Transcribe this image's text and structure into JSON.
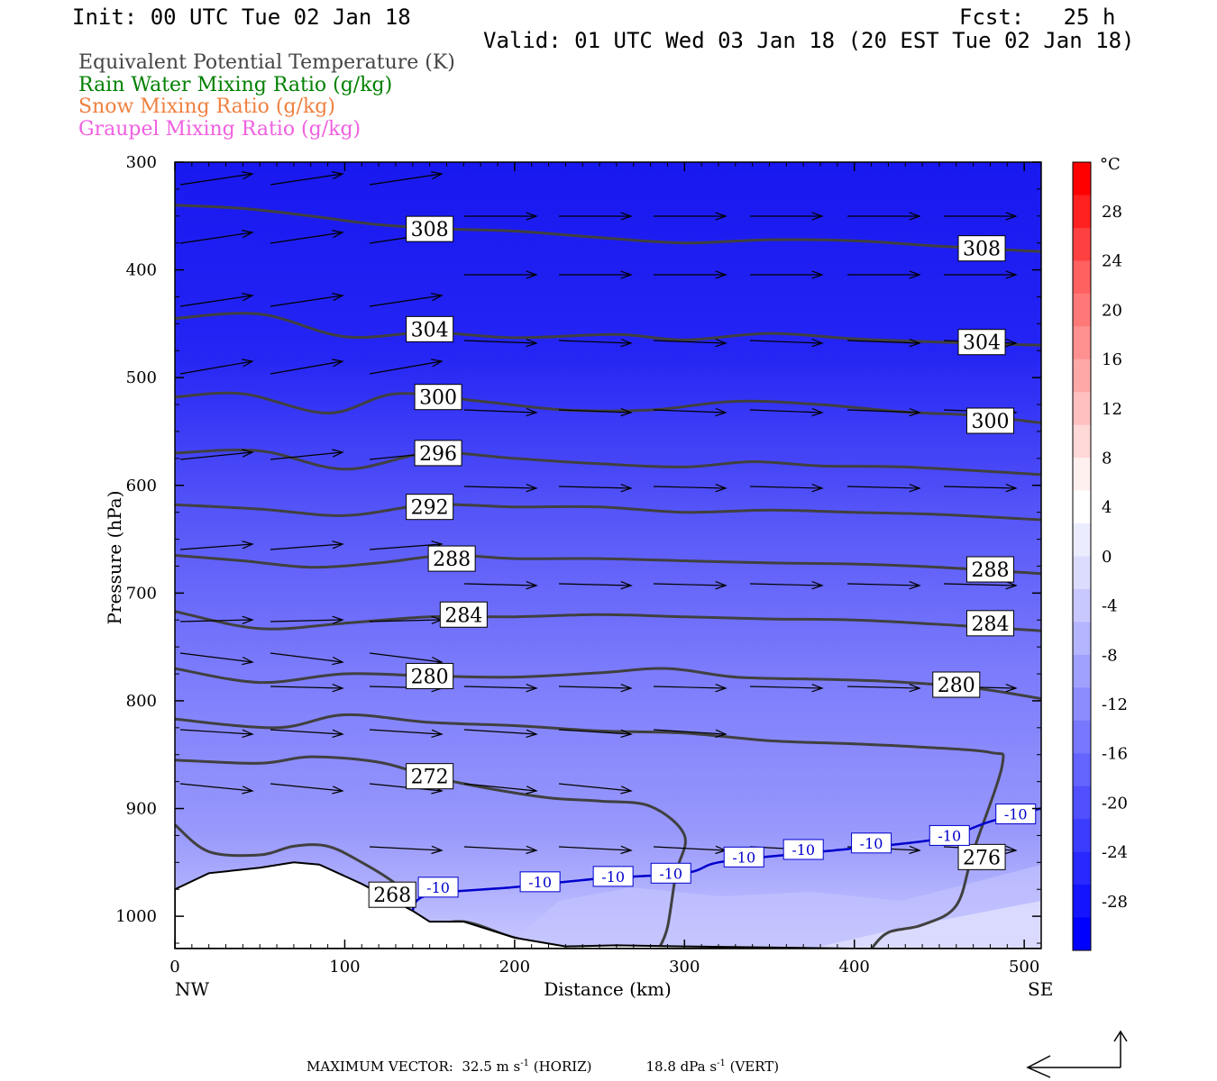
{
  "header": {
    "init": "Init: 00 UTC Tue 02 Jan 18",
    "fcst": "Fcst:   25 h",
    "valid": "Valid: 01 UTC Wed 03 Jan 18 (20 EST Tue 02 Jan 18)"
  },
  "legend": [
    {
      "text": "Equivalent Potential Temperature (K)",
      "color": "#444444"
    },
    {
      "text": "Rain Water Mixing Ratio (g/kg)",
      "color": "#008000"
    },
    {
      "text": "Snow Mixing Ratio (g/kg)",
      "color": "#f08040"
    },
    {
      "text": "Graupel Mixing Ratio (g/kg)",
      "color": "#f060e0"
    }
  ],
  "footer": {
    "text": "MAXIMUM VECTOR:  32.5 m s",
    "horiz": "-1",
    "horiz_tail": " (HORIZ)",
    "vert": "18.8 dPa s",
    "vert_sup": "-1",
    "vert_tail": " (VERT)"
  },
  "chart_data": {
    "type": "cross-section",
    "xlabel": "Distance (km)",
    "ylabel": "Pressure (hPa)",
    "xlim": [
      0,
      510
    ],
    "ylim": [
      1030,
      300
    ],
    "x_ticks": [
      0,
      100,
      200,
      300,
      400,
      500
    ],
    "y_ticks": [
      300,
      400,
      500,
      600,
      700,
      800,
      900,
      1000
    ],
    "x_end_labels": {
      "left": "NW",
      "right": "SE"
    },
    "colorbar": {
      "unit": "°C",
      "labels": [
        28,
        24,
        20,
        16,
        12,
        8,
        4,
        0,
        -4,
        -8,
        -12,
        -16,
        -20,
        -24,
        -28
      ],
      "colors": [
        "#ff0000",
        "#ff2020",
        "#ff4040",
        "#ff6060",
        "#ff7878",
        "#ff9090",
        "#ffa8a8",
        "#ffc0c0",
        "#ffd8d8",
        "#fff0f0",
        "#ffffff",
        "#ececff",
        "#dcdcff",
        "#c8c8ff",
        "#b4b4ff",
        "#a0a0ff",
        "#8c8cff",
        "#7878ff",
        "#6464ff",
        "#5050ff",
        "#3c3cff",
        "#2828ff",
        "#1414ff",
        "#0000ff"
      ]
    },
    "theta_e_contours": [
      {
        "label": "308",
        "points": [
          [
            0,
            340
          ],
          [
            40,
            343
          ],
          [
            80,
            350
          ],
          [
            120,
            358
          ],
          [
            160,
            362
          ],
          [
            200,
            364
          ],
          [
            250,
            370
          ],
          [
            300,
            375
          ],
          [
            350,
            372
          ],
          [
            400,
            373
          ],
          [
            450,
            378
          ],
          [
            510,
            383
          ]
        ]
      },
      {
        "label": "304",
        "points": [
          [
            0,
            445
          ],
          [
            50,
            441
          ],
          [
            100,
            462
          ],
          [
            150,
            458
          ],
          [
            200,
            463
          ],
          [
            260,
            460
          ],
          [
            300,
            465
          ],
          [
            350,
            459
          ],
          [
            400,
            464
          ],
          [
            450,
            467
          ],
          [
            510,
            470
          ]
        ]
      },
      {
        "label": "300",
        "points": [
          [
            0,
            518
          ],
          [
            40,
            515
          ],
          [
            90,
            533
          ],
          [
            130,
            515
          ],
          [
            180,
            522
          ],
          [
            230,
            530
          ],
          [
            280,
            530
          ],
          [
            330,
            522
          ],
          [
            380,
            525
          ],
          [
            430,
            532
          ],
          [
            470,
            535
          ],
          [
            510,
            542
          ]
        ]
      },
      {
        "label": "296",
        "points": [
          [
            0,
            570
          ],
          [
            50,
            568
          ],
          [
            100,
            585
          ],
          [
            150,
            570
          ],
          [
            200,
            575
          ],
          [
            250,
            580
          ],
          [
            300,
            583
          ],
          [
            340,
            578
          ],
          [
            380,
            582
          ],
          [
            430,
            583
          ],
          [
            510,
            590
          ]
        ]
      },
      {
        "label": "292",
        "points": [
          [
            0,
            618
          ],
          [
            50,
            622
          ],
          [
            100,
            628
          ],
          [
            150,
            618
          ],
          [
            200,
            620
          ],
          [
            250,
            620
          ],
          [
            300,
            625
          ],
          [
            350,
            623
          ],
          [
            400,
            625
          ],
          [
            450,
            627
          ],
          [
            510,
            632
          ]
        ]
      },
      {
        "label": "288",
        "points": [
          [
            0,
            665
          ],
          [
            40,
            670
          ],
          [
            80,
            676
          ],
          [
            120,
            672
          ],
          [
            160,
            665
          ],
          [
            200,
            668
          ],
          [
            250,
            668
          ],
          [
            300,
            670
          ],
          [
            350,
            672
          ],
          [
            400,
            673
          ],
          [
            450,
            676
          ],
          [
            510,
            682
          ]
        ]
      },
      {
        "label": "284",
        "points": [
          [
            0,
            717
          ],
          [
            50,
            733
          ],
          [
            100,
            728
          ],
          [
            150,
            722
          ],
          [
            200,
            722
          ],
          [
            250,
            720
          ],
          [
            300,
            722
          ],
          [
            350,
            724
          ],
          [
            400,
            725
          ],
          [
            460,
            730
          ],
          [
            510,
            735
          ]
        ]
      },
      {
        "label": "280",
        "points": [
          [
            0,
            770
          ],
          [
            50,
            783
          ],
          [
            100,
            775
          ],
          [
            150,
            777
          ],
          [
            200,
            778
          ],
          [
            250,
            774
          ],
          [
            290,
            770
          ],
          [
            330,
            778
          ],
          [
            380,
            780
          ],
          [
            420,
            782
          ],
          [
            470,
            788
          ],
          [
            510,
            798
          ]
        ]
      },
      {
        "label": "276",
        "points": [
          [
            0,
            817
          ],
          [
            60,
            825
          ],
          [
            100,
            813
          ],
          [
            150,
            820
          ],
          [
            200,
            823
          ],
          [
            250,
            828
          ],
          [
            300,
            830
          ],
          [
            350,
            837
          ],
          [
            400,
            840
          ],
          [
            440,
            843
          ],
          [
            480,
            848
          ],
          [
            487,
            860
          ],
          [
            470,
            940
          ],
          [
            460,
            990
          ],
          [
            440,
            1008
          ],
          [
            420,
            1015
          ],
          [
            410,
            1030
          ]
        ]
      },
      {
        "label": "272",
        "points": [
          [
            0,
            855
          ],
          [
            50,
            858
          ],
          [
            80,
            852
          ],
          [
            120,
            857
          ],
          [
            150,
            870
          ],
          [
            180,
            880
          ],
          [
            220,
            890
          ],
          [
            250,
            893
          ],
          [
            280,
            898
          ],
          [
            300,
            925
          ],
          [
            295,
            960
          ],
          [
            290,
            1010
          ],
          [
            285,
            1030
          ]
        ]
      },
      {
        "label": "268",
        "points": [
          [
            0,
            915
          ],
          [
            20,
            940
          ],
          [
            50,
            943
          ],
          [
            70,
            935
          ],
          [
            90,
            935
          ],
          [
            110,
            950
          ],
          [
            130,
            970
          ],
          [
            140,
            990
          ],
          [
            130,
            985
          ],
          [
            130,
            1000
          ],
          [
            145,
            1010
          ],
          [
            170,
            1005
          ],
          [
            200,
            1020
          ],
          [
            230,
            1030
          ]
        ]
      }
    ],
    "temp_contour_-10": {
      "label": "-10",
      "points": [
        [
          130,
          995
        ],
        [
          145,
          1008
        ],
        [
          140,
          995
        ],
        [
          150,
          980
        ],
        [
          200,
          973
        ],
        [
          250,
          965
        ],
        [
          300,
          960
        ],
        [
          320,
          950
        ],
        [
          360,
          943
        ],
        [
          400,
          937
        ],
        [
          450,
          928
        ],
        [
          480,
          912
        ],
        [
          510,
          900
        ]
      ],
      "color": "#0000cc"
    },
    "terrain_points": [
      [
        0,
        975
      ],
      [
        20,
        960
      ],
      [
        50,
        955
      ],
      [
        70,
        950
      ],
      [
        85,
        952
      ],
      [
        110,
        970
      ],
      [
        140,
        995
      ],
      [
        150,
        1005
      ],
      [
        170,
        1005
      ],
      [
        200,
        1020
      ],
      [
        230,
        1028
      ],
      [
        260,
        1027
      ],
      [
        300,
        1028
      ],
      [
        400,
        1030
      ],
      [
        510,
        1030
      ]
    ]
  }
}
